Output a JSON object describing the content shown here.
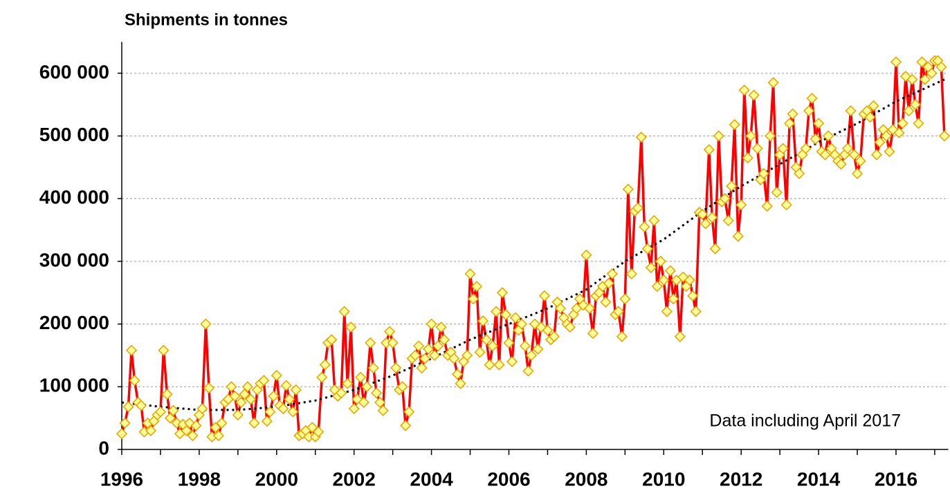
{
  "chart_data": {
    "type": "line",
    "title": "Shipments in tonnes",
    "annotation": "Data including April 2017",
    "xlim": [
      1996,
      2017.35
    ],
    "xticks": [
      1996,
      1998,
      2000,
      2002,
      2004,
      2006,
      2008,
      2010,
      2012,
      2014,
      2016
    ],
    "xminorticks": [
      1997,
      1999,
      2001,
      2003,
      2005,
      2007,
      2009,
      2011,
      2013,
      2015,
      2017
    ],
    "ylim": [
      0,
      650000
    ],
    "yticks": [
      0,
      {
        "value": 100000,
        "label": "100 000"
      },
      {
        "value": 200000,
        "label": "200 000"
      },
      {
        "value": 300000,
        "label": "300 000"
      },
      {
        "value": 400000,
        "label": "400 000"
      },
      {
        "value": 500000,
        "label": "500 000"
      },
      {
        "value": 600000,
        "label": "600 000"
      }
    ],
    "grid": true,
    "line_color": "#ff0000",
    "marker_fill": "#ffff99",
    "marker_stroke": "#e8a000",
    "trend_color": "#000000",
    "x": [
      1996,
      1996.08,
      1996.17,
      1996.25,
      1996.33,
      1996.42,
      1996.5,
      1996.58,
      1996.67,
      1996.75,
      1996.83,
      1996.92,
      1997,
      1997.08,
      1997.17,
      1997.25,
      1997.33,
      1997.42,
      1997.5,
      1997.58,
      1997.67,
      1997.75,
      1997.83,
      1997.92,
      1998,
      1998.08,
      1998.17,
      1998.25,
      1998.33,
      1998.42,
      1998.5,
      1998.58,
      1998.67,
      1998.75,
      1998.83,
      1998.92,
      1999,
      1999.08,
      1999.17,
      1999.25,
      1999.33,
      1999.42,
      1999.5,
      1999.58,
      1999.67,
      1999.75,
      1999.83,
      1999.92,
      2000,
      2000.08,
      2000.17,
      2000.25,
      2000.33,
      2000.42,
      2000.5,
      2000.58,
      2000.67,
      2000.75,
      2000.83,
      2000.92,
      2001,
      2001.08,
      2001.17,
      2001.25,
      2001.33,
      2001.42,
      2001.5,
      2001.58,
      2001.67,
      2001.75,
      2001.83,
      2001.92,
      2002,
      2002.08,
      2002.17,
      2002.25,
      2002.33,
      2002.42,
      2002.5,
      2002.58,
      2002.67,
      2002.75,
      2002.83,
      2002.92,
      2003,
      2003.08,
      2003.17,
      2003.25,
      2003.33,
      2003.42,
      2003.5,
      2003.58,
      2003.67,
      2003.75,
      2003.83,
      2003.92,
      2004,
      2004.08,
      2004.17,
      2004.25,
      2004.33,
      2004.42,
      2004.5,
      2004.58,
      2004.67,
      2004.75,
      2004.83,
      2004.92,
      2005,
      2005.08,
      2005.17,
      2005.25,
      2005.33,
      2005.42,
      2005.5,
      2005.58,
      2005.67,
      2005.75,
      2005.83,
      2005.92,
      2006,
      2006.08,
      2006.17,
      2006.25,
      2006.33,
      2006.42,
      2006.5,
      2006.58,
      2006.67,
      2006.75,
      2006.83,
      2006.92,
      2007,
      2007.08,
      2007.17,
      2007.25,
      2007.33,
      2007.42,
      2007.5,
      2007.58,
      2007.67,
      2007.75,
      2007.83,
      2007.92,
      2008,
      2008.08,
      2008.17,
      2008.25,
      2008.33,
      2008.42,
      2008.5,
      2008.58,
      2008.67,
      2008.75,
      2008.83,
      2008.92,
      2009,
      2009.08,
      2009.17,
      2009.25,
      2009.33,
      2009.42,
      2009.5,
      2009.58,
      2009.67,
      2009.75,
      2009.83,
      2009.92,
      2010,
      2010.08,
      2010.17,
      2010.25,
      2010.33,
      2010.42,
      2010.5,
      2010.58,
      2010.67,
      2010.75,
      2010.83,
      2010.92,
      2011,
      2011.08,
      2011.17,
      2011.25,
      2011.33,
      2011.42,
      2011.5,
      2011.58,
      2011.67,
      2011.75,
      2011.83,
      2011.92,
      2012,
      2012.08,
      2012.17,
      2012.25,
      2012.33,
      2012.42,
      2012.5,
      2012.58,
      2012.67,
      2012.75,
      2012.83,
      2012.92,
      2013,
      2013.08,
      2013.17,
      2013.25,
      2013.33,
      2013.42,
      2013.5,
      2013.58,
      2013.67,
      2013.75,
      2013.83,
      2013.92,
      2014,
      2014.08,
      2014.17,
      2014.25,
      2014.33,
      2014.42,
      2014.5,
      2014.58,
      2014.67,
      2014.75,
      2014.83,
      2014.92,
      2015,
      2015.08,
      2015.17,
      2015.25,
      2015.33,
      2015.42,
      2015.5,
      2015.58,
      2015.67,
      2015.75,
      2015.83,
      2015.92,
      2016,
      2016.08,
      2016.17,
      2016.25,
      2016.33,
      2016.42,
      2016.5,
      2016.58,
      2016.67,
      2016.75,
      2016.83,
      2016.92,
      2017,
      2017.08,
      2017.17,
      2017.25
    ],
    "values": [
      25000,
      42000,
      68000,
      158000,
      110000,
      75000,
      70000,
      28000,
      42000,
      30000,
      45000,
      55000,
      60000,
      158000,
      88000,
      50000,
      62000,
      42000,
      25000,
      40000,
      30000,
      42000,
      22000,
      38000,
      55000,
      65000,
      200000,
      98000,
      20000,
      35000,
      22000,
      42000,
      75000,
      80000,
      100000,
      85000,
      55000,
      75000,
      88000,
      100000,
      80000,
      42000,
      95000,
      105000,
      110000,
      45000,
      60000,
      85000,
      118000,
      70000,
      65000,
      102000,
      80000,
      60000,
      95000,
      22000,
      25000,
      30000,
      20000,
      35000,
      20000,
      28000,
      115000,
      135000,
      170000,
      175000,
      95000,
      85000,
      90000,
      220000,
      105000,
      195000,
      65000,
      80000,
      115000,
      75000,
      100000,
      170000,
      130000,
      90000,
      75000,
      62000,
      170000,
      188000,
      170000,
      130000,
      95000,
      100000,
      38000,
      60000,
      145000,
      150000,
      165000,
      130000,
      145000,
      160000,
      200000,
      150000,
      165000,
      195000,
      175000,
      150000,
      155000,
      145000,
      120000,
      105000,
      140000,
      150000,
      280000,
      240000,
      260000,
      155000,
      205000,
      175000,
      135000,
      165000,
      220000,
      135000,
      250000,
      215000,
      170000,
      140000,
      210000,
      190000,
      200000,
      165000,
      125000,
      150000,
      200000,
      160000,
      195000,
      245000,
      190000,
      175000,
      180000,
      235000,
      225000,
      210000,
      200000,
      195000,
      215000,
      225000,
      240000,
      230000,
      310000,
      225000,
      185000,
      245000,
      250000,
      260000,
      235000,
      265000,
      280000,
      215000,
      220000,
      180000,
      240000,
      415000,
      280000,
      380000,
      385000,
      498000,
      355000,
      320000,
      290000,
      365000,
      260000,
      300000,
      270000,
      220000,
      285000,
      240000,
      270000,
      180000,
      275000,
      260000,
      270000,
      245000,
      220000,
      378000,
      375000,
      360000,
      478000,
      370000,
      320000,
      500000,
      395000,
      400000,
      365000,
      420000,
      518000,
      340000,
      390000,
      573000,
      465000,
      500000,
      565000,
      480000,
      430000,
      440000,
      388000,
      500000,
      585000,
      410000,
      470000,
      480000,
      390000,
      520000,
      535000,
      450000,
      440000,
      470000,
      480000,
      540000,
      560000,
      495000,
      520000,
      475000,
      470000,
      500000,
      480000,
      470000,
      460000,
      455000,
      470000,
      480000,
      540000,
      470000,
      440000,
      460000,
      535000,
      540000,
      530000,
      548000,
      470000,
      490000,
      510000,
      500000,
      475000,
      510000,
      618000,
      505000,
      520000,
      595000,
      540000,
      590000,
      550000,
      520000,
      618000,
      590000,
      610000,
      600000,
      620000,
      620000,
      610000,
      500000
    ],
    "trend": {
      "x": [
        1996,
        1997,
        1998,
        1999,
        2000,
        2001,
        2002,
        2003,
        2004,
        2005,
        2006,
        2007,
        2008,
        2009,
        2010,
        2011,
        2012,
        2013,
        2014,
        2015,
        2016,
        2017.25
      ],
      "values": [
        75000,
        68000,
        63000,
        63000,
        68000,
        78000,
        95000,
        118000,
        145000,
        175000,
        200000,
        225000,
        255000,
        300000,
        335000,
        380000,
        420000,
        455000,
        490000,
        520000,
        555000,
        590000
      ]
    }
  }
}
